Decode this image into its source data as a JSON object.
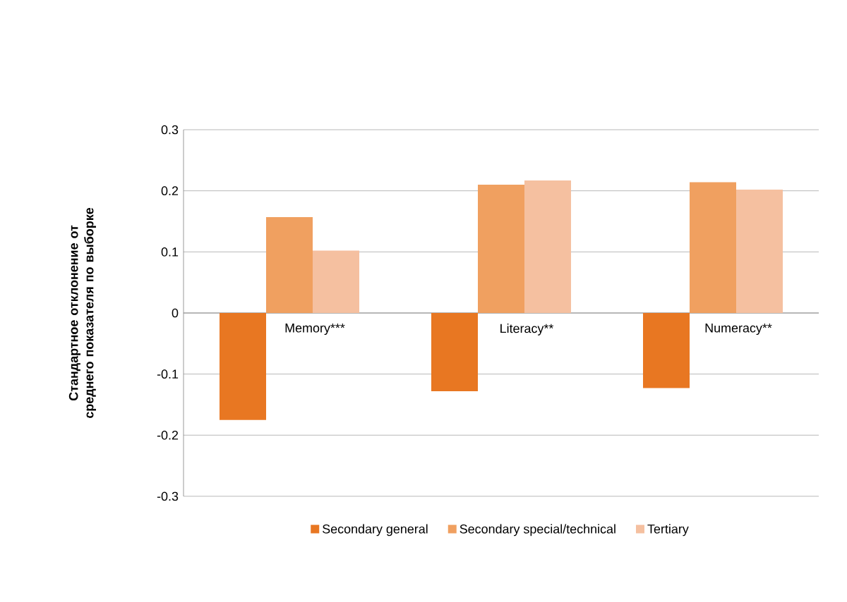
{
  "chart_data": {
    "type": "bar",
    "ylabel": "Стандартное отклонение от среднего показателя по выборке",
    "categories": [
      "Memory***",
      "Literacy**",
      "Numeracy**"
    ],
    "series": [
      {
        "name": "Secondary general",
        "color": "#e87722",
        "values": [
          -0.175,
          -0.128,
          -0.123
        ]
      },
      {
        "name": "Secondary special/technical",
        "color": "#f0a060",
        "values": [
          0.157,
          0.21,
          0.214
        ]
      },
      {
        "name": "Tertiary",
        "color": "#f5c0a0",
        "values": [
          0.102,
          0.217,
          0.202
        ]
      }
    ],
    "ylim": [
      -0.3,
      0.3
    ],
    "yticks": [
      -0.3,
      -0.2,
      -0.1,
      0,
      0.1,
      0.2,
      0.3
    ],
    "grid": "y",
    "legend": "bottom"
  }
}
